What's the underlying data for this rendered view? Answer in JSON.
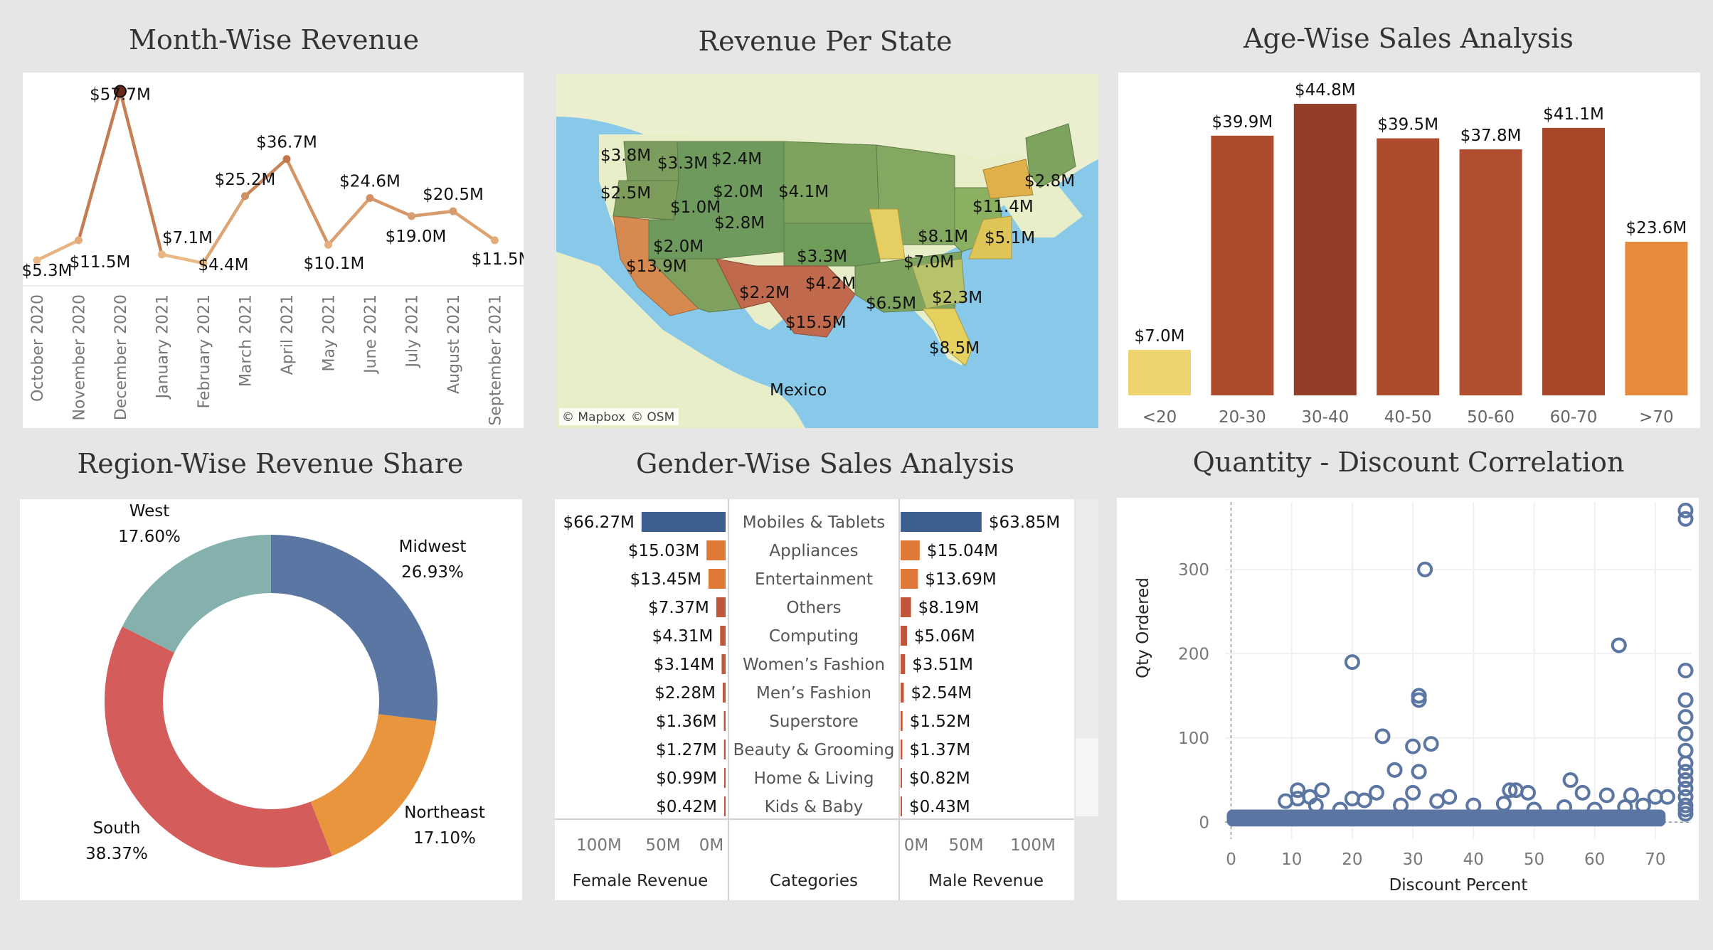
{
  "month_chart": {
    "type": "line",
    "title": "Month-Wise Revenue",
    "x": [
      "October 2020",
      "November 2020",
      "December 2020",
      "January 2021",
      "February 2021",
      "March 2021",
      "April 2021",
      "May 2021",
      "June 2021",
      "July 2021",
      "August 2021",
      "September 2021"
    ],
    "values": [
      5.3,
      11.5,
      57.7,
      7.1,
      4.4,
      25.2,
      36.7,
      10.1,
      24.6,
      19.0,
      20.5,
      11.5
    ],
    "labels": [
      "$5.3M",
      "$11.5M",
      "$57.7M",
      "$7.1M",
      "$4.4M",
      "$25.2M",
      "$36.7M",
      "$10.1M",
      "$24.6M",
      "$19.0M",
      "$20.5M",
      "$11.5M"
    ],
    "ylim": [
      0,
      60
    ]
  },
  "map": {
    "title": "Revenue Per State",
    "country_label": "Mexico",
    "credits": [
      "© Mapbox",
      "© OSM"
    ],
    "state_labels": [
      "$3.8M",
      "$3.3M",
      "$2.4M",
      "$2.5M",
      "$2.0M",
      "$4.1M",
      "$2.8M",
      "$1.0M",
      "$11.4M",
      "$2.8M",
      "$8.1M",
      "$5.1M",
      "$2.0M",
      "$3.3M",
      "$7.0M",
      "$13.9M",
      "$4.2M",
      "$2.2M",
      "$6.5M",
      "$2.3M",
      "$15.5M",
      "$8.5M"
    ]
  },
  "age_chart": {
    "type": "bar",
    "title": "Age-Wise Sales Analysis",
    "categories": [
      "<20",
      "20-30",
      "30-40",
      "40-50",
      "50-60",
      "60-70",
      ">70"
    ],
    "values": [
      7.0,
      39.9,
      44.8,
      39.5,
      37.8,
      41.1,
      23.6
    ],
    "labels": [
      "$7.0M",
      "$39.9M",
      "$44.8M",
      "$39.5M",
      "$37.8M",
      "$41.1M",
      "$23.6M"
    ],
    "colors": [
      "#edd46e",
      "#ad4a2c",
      "#923e28",
      "#ae4b2d",
      "#b14e2f",
      "#a84629",
      "#e78a3c"
    ]
  },
  "region_chart": {
    "type": "pie",
    "title": "Region-Wise Revenue Share",
    "slices": [
      {
        "name": "Midwest",
        "value": 26.93,
        "label": "26.93%",
        "color": "#5b76a2"
      },
      {
        "name": "Northeast",
        "value": 17.1,
        "label": "17.10%",
        "color": "#e8953e"
      },
      {
        "name": "South",
        "value": 38.37,
        "label": "38.37%",
        "color": "#d45d5b"
      },
      {
        "name": "West",
        "value": 17.6,
        "label": "17.60%",
        "color": "#84b1ad"
      }
    ]
  },
  "gender_chart": {
    "type": "bar",
    "title": "Gender-Wise Sales Analysis",
    "categories": [
      "Mobiles & Tablets",
      "Appliances",
      "Entertainment",
      "Others",
      "Computing",
      "Women’s Fashion",
      "Men’s Fashion",
      "Superstore",
      "Beauty & Grooming",
      "Home & Living",
      "Kids & Baby"
    ],
    "female": [
      66.27,
      15.03,
      13.45,
      7.37,
      4.31,
      3.14,
      2.28,
      1.36,
      1.27,
      0.99,
      0.42
    ],
    "female_labels": [
      "$66.27M",
      "$15.03M",
      "$13.45M",
      "$7.37M",
      "$4.31M",
      "$3.14M",
      "$2.28M",
      "$1.36M",
      "$1.27M",
      "$0.99M",
      "$0.42M"
    ],
    "male": [
      63.85,
      15.04,
      13.69,
      8.19,
      5.06,
      3.51,
      2.54,
      1.52,
      1.37,
      0.82,
      0.43
    ],
    "male_labels": [
      "$63.85M",
      "$15.04M",
      "$13.69M",
      "$8.19M",
      "$5.06M",
      "$3.51M",
      "$2.54M",
      "$1.52M",
      "$1.37M",
      "$0.82M",
      "$0.43M"
    ],
    "female_axis_ticks": [
      "100M",
      "50M",
      "0M"
    ],
    "male_axis_ticks": [
      "0M",
      "50M",
      "100M"
    ],
    "female_axis_title": "Female Revenue",
    "categories_title": "Categories",
    "male_axis_title": "Male Revenue",
    "colors": {
      "top": "#3d5f8f",
      "mid": "#e07838",
      "low": "#c0573a"
    }
  },
  "scatter_chart": {
    "type": "scatter",
    "title": "Quantity - Discount Correlation",
    "xlabel": "Discount Percent",
    "ylabel": "Qty Ordered",
    "xlim": [
      -1,
      76
    ],
    "ylim": [
      -20,
      380
    ],
    "x_ticks": [
      0,
      10,
      20,
      30,
      40,
      50,
      60,
      70
    ],
    "y_ticks": [
      0,
      100,
      200,
      300
    ],
    "point_color": "#5b76a2",
    "points": [
      [
        75,
        370
      ],
      [
        75,
        360
      ],
      [
        32,
        300
      ],
      [
        64,
        210
      ],
      [
        20,
        190
      ],
      [
        75,
        180
      ],
      [
        31,
        150
      ],
      [
        31,
        145
      ],
      [
        75,
        145
      ],
      [
        75,
        125
      ],
      [
        25,
        102
      ],
      [
        75,
        105
      ],
      [
        33,
        93
      ],
      [
        30,
        90
      ],
      [
        75,
        85
      ],
      [
        75,
        70
      ],
      [
        27,
        62
      ],
      [
        31,
        60
      ],
      [
        75,
        60
      ],
      [
        75,
        50
      ],
      [
        56,
        50
      ],
      [
        75,
        40
      ],
      [
        75,
        30
      ],
      [
        75,
        20
      ],
      [
        75,
        15
      ],
      [
        75,
        10
      ],
      [
        24,
        35
      ],
      [
        30,
        35
      ],
      [
        36,
        30
      ],
      [
        46,
        38
      ],
      [
        47,
        38
      ],
      [
        49,
        35
      ],
      [
        58,
        35
      ],
      [
        62,
        32
      ],
      [
        66,
        32
      ],
      [
        70,
        30
      ],
      [
        72,
        30
      ],
      [
        11,
        38
      ],
      [
        11,
        28
      ],
      [
        13,
        30
      ],
      [
        15,
        38
      ],
      [
        9,
        25
      ],
      [
        14,
        20
      ],
      [
        20,
        28
      ],
      [
        22,
        26
      ],
      [
        18,
        15
      ],
      [
        28,
        20
      ],
      [
        34,
        25
      ],
      [
        40,
        20
      ],
      [
        45,
        22
      ],
      [
        50,
        15
      ],
      [
        55,
        18
      ],
      [
        60,
        15
      ],
      [
        65,
        18
      ],
      [
        68,
        20
      ]
    ],
    "dense_band": {
      "x_from": 0,
      "x_to": 71,
      "y_from": 0,
      "y_to": 10
    }
  }
}
